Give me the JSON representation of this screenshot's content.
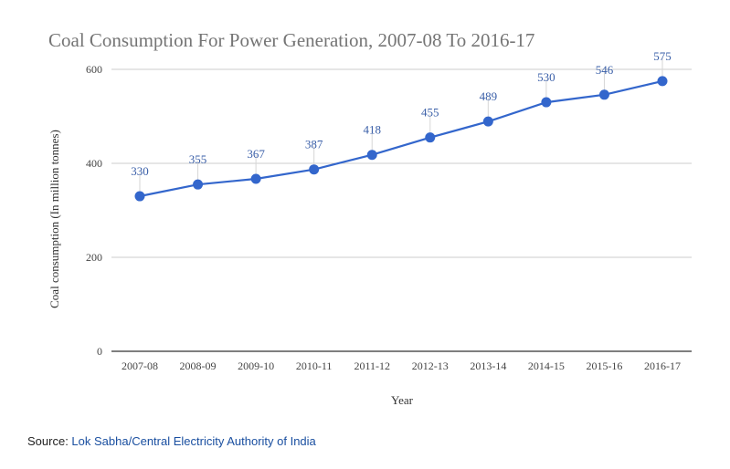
{
  "chart_data": {
    "type": "line",
    "title": "Coal Consumption For Power Generation, 2007-08 To 2016-17",
    "xlabel": "Year",
    "ylabel": "Coal consumption (In million tonnes)",
    "ylim": [
      0,
      600
    ],
    "yticks": [
      "0",
      "200",
      "400",
      "600"
    ],
    "grid": true,
    "categories": [
      "2007-08",
      "2008-09",
      "2009-10",
      "2010-11",
      "2011-12",
      "2012-13",
      "2013-14",
      "2014-15",
      "2015-16",
      "2016-17"
    ],
    "series": [
      {
        "name": "Coal consumption",
        "values": [
          330,
          355,
          367,
          387,
          418,
          455,
          489,
          530,
          546,
          575
        ]
      }
    ]
  },
  "colors": {
    "series": "#3366cc",
    "label": "#3a5fa8",
    "grid": "#cccccc",
    "axis": "#333333",
    "title": "#757575",
    "text": "#444444"
  },
  "source": {
    "prefix": "Source: ",
    "link_text": "Lok Sabha/Central Electricity Authority of India"
  }
}
